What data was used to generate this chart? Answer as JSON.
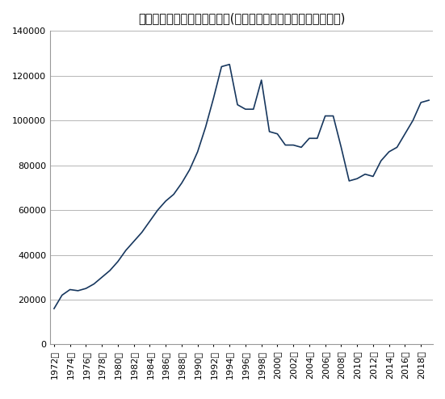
{
  "title": "給与所得者からの所得税税額(国税庁把握分、総額、年間、億円)",
  "years": [
    1972,
    1973,
    1974,
    1975,
    1976,
    1977,
    1978,
    1979,
    1980,
    1981,
    1982,
    1983,
    1984,
    1985,
    1986,
    1987,
    1988,
    1989,
    1990,
    1991,
    1992,
    1993,
    1994,
    1995,
    1996,
    1997,
    1998,
    1999,
    2000,
    2001,
    2002,
    2003,
    2004,
    2005,
    2006,
    2007,
    2008,
    2009,
    2010,
    2011,
    2012,
    2013,
    2014,
    2015,
    2016,
    2017,
    2018,
    2019
  ],
  "values": [
    16000,
    22000,
    24500,
    24000,
    25000,
    27000,
    30000,
    33000,
    37000,
    42000,
    46000,
    50000,
    55000,
    60000,
    64000,
    67000,
    72000,
    78000,
    86000,
    97000,
    110000,
    124000,
    125000,
    107000,
    105000,
    105000,
    118000,
    95000,
    94000,
    89000,
    89000,
    88000,
    92000,
    92000,
    102000,
    102000,
    88000,
    73000,
    74000,
    76000,
    75000,
    82000,
    86000,
    88000,
    94000,
    100000,
    108000,
    109000
  ],
  "line_color": "#17375E",
  "ylim": [
    0,
    140000
  ],
  "ytick_step": 20000,
  "background_color": "#ffffff",
  "title_fontsize": 10.5,
  "tick_label_fontsize": 8,
  "grid_color": "#999999",
  "xlabel_rotation": 90,
  "ytick_labels": [
    "0",
    "20000",
    "40000",
    "60000",
    "80000",
    "100000",
    "120000",
    "140000"
  ],
  "ytick_values": [
    0,
    20000,
    40000,
    60000,
    80000,
    100000,
    120000,
    140000
  ]
}
